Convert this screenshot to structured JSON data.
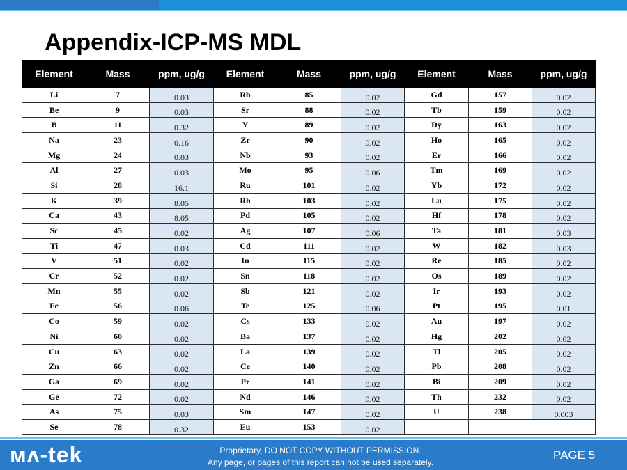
{
  "title": "Appendix-ICP-MS MDL",
  "table": {
    "headers": [
      "Element",
      "Mass",
      "ppm, ug/g",
      "Element",
      "Mass",
      "ppm, ug/g",
      "Element",
      "Mass",
      "ppm, ug/g"
    ],
    "rows": [
      [
        "Li",
        "7",
        "0.03",
        "Rb",
        "85",
        "0.02",
        "Gd",
        "157",
        "0.02"
      ],
      [
        "Be",
        "9",
        "0.03",
        "Sr",
        "88",
        "0.02",
        "Tb",
        "159",
        "0.02"
      ],
      [
        "B",
        "11",
        "0.32",
        "Y",
        "89",
        "0.02",
        "Dy",
        "163",
        "0.02"
      ],
      [
        "Na",
        "23",
        "0.16",
        "Zr",
        "90",
        "0.02",
        "Ho",
        "165",
        "0.02"
      ],
      [
        "Mg",
        "24",
        "0.03",
        "Nb",
        "93",
        "0.02",
        "Er",
        "166",
        "0.02"
      ],
      [
        "Al",
        "27",
        "0.03",
        "Mo",
        "95",
        "0.06",
        "Tm",
        "169",
        "0.02"
      ],
      [
        "Si",
        "28",
        "16.1",
        "Ru",
        "101",
        "0.02",
        "Yb",
        "172",
        "0.02"
      ],
      [
        "K",
        "39",
        "8.05",
        "Rh",
        "103",
        "0.02",
        "Lu",
        "175",
        "0.02"
      ],
      [
        "Ca",
        "43",
        "8.05",
        "Pd",
        "105",
        "0.02",
        "Hf",
        "178",
        "0.02"
      ],
      [
        "Sc",
        "45",
        "0.02",
        "Ag",
        "107",
        "0.06",
        "Ta",
        "181",
        "0.03"
      ],
      [
        "Ti",
        "47",
        "0.03",
        "Cd",
        "111",
        "0.02",
        "W",
        "182",
        "0.03"
      ],
      [
        "V",
        "51",
        "0.02",
        "In",
        "115",
        "0.02",
        "Re",
        "185",
        "0.02"
      ],
      [
        "Cr",
        "52",
        "0.02",
        "Sn",
        "118",
        "0.02",
        "Os",
        "189",
        "0.02"
      ],
      [
        "Mn",
        "55",
        "0.02",
        "Sb",
        "121",
        "0.02",
        "Ir",
        "193",
        "0.02"
      ],
      [
        "Fe",
        "56",
        "0.06",
        "Te",
        "125",
        "0.06",
        "Pt",
        "195",
        "0.01"
      ],
      [
        "Co",
        "59",
        "0.02",
        "Cs",
        "133",
        "0.02",
        "Au",
        "197",
        "0.02"
      ],
      [
        "Ni",
        "60",
        "0.02",
        "Ba",
        "137",
        "0.02",
        "Hg",
        "202",
        "0.02"
      ],
      [
        "Cu",
        "63",
        "0.02",
        "La",
        "139",
        "0.02",
        "Tl",
        "205",
        "0.02"
      ],
      [
        "Zn",
        "66",
        "0.02",
        "Ce",
        "140",
        "0.02",
        "Pb",
        "208",
        "0.02"
      ],
      [
        "Ga",
        "69",
        "0.02",
        "Pr",
        "141",
        "0.02",
        "Bi",
        "209",
        "0.02"
      ],
      [
        "Ge",
        "72",
        "0.02",
        "Nd",
        "146",
        "0.02",
        "Th",
        "232",
        "0.02"
      ],
      [
        "As",
        "75",
        "0.03",
        "Sm",
        "147",
        "0.02",
        "U",
        "238",
        "0.003"
      ],
      [
        "Se",
        "78",
        "0.32",
        "Eu",
        "153",
        "0.02",
        "",
        "",
        ""
      ]
    ]
  },
  "footer": {
    "logo": "ᴍᴧ-tek",
    "line1": "Proprietary, DO NOT COPY WITHOUT PERMISSION.",
    "line2": "Any page, or pages of this report can not be used separately.",
    "page": "PAGE  5"
  },
  "colors": {
    "header_bg": "#000000",
    "ppm_cell_bg": "#dae6f2",
    "footer_bg": "#2a7bc9",
    "top_bar": "#1d8fd6"
  }
}
